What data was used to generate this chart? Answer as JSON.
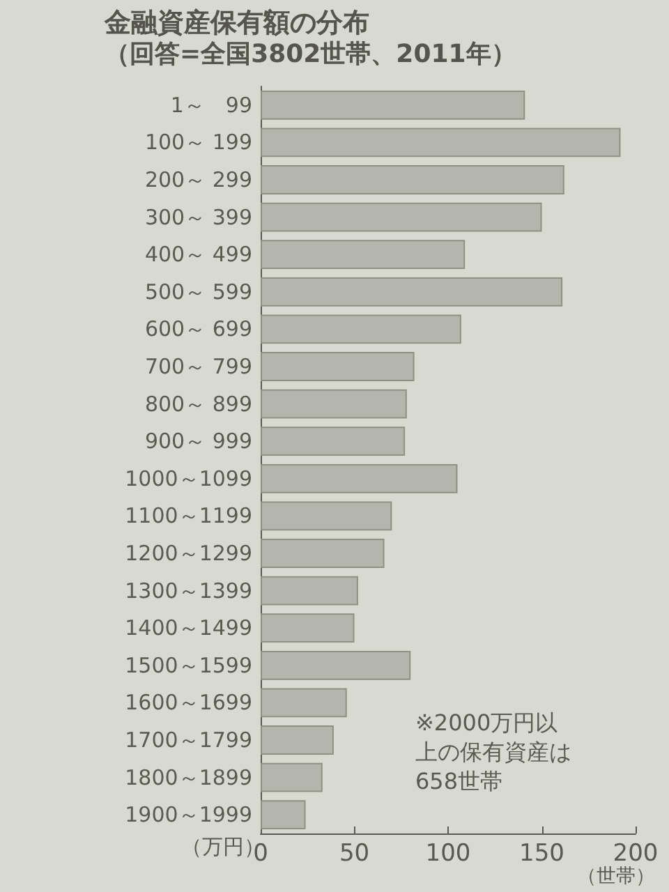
{
  "chart_data": {
    "type": "bar",
    "orientation": "horizontal",
    "title": "金融資産保有額の分布",
    "subtitle": "（回答=全国3802世帯、2011年）",
    "categories": [
      "1～　99",
      "100～ 199",
      "200～ 299",
      "300～ 399",
      "400～ 499",
      "500～ 599",
      "600～ 699",
      "700～ 799",
      "800～ 899",
      "900～ 999",
      "1000～1099",
      "1100～1199",
      "1200～1299",
      "1300～1399",
      "1400～1499",
      "1500～1599",
      "1600～1699",
      "1700～1799",
      "1800～1899",
      "1900～1999"
    ],
    "values": [
      141,
      192,
      162,
      150,
      109,
      161,
      107,
      82,
      78,
      77,
      105,
      70,
      66,
      52,
      50,
      80,
      46,
      39,
      33,
      24
    ],
    "color": "#b4b5ad",
    "xlim": [
      0,
      200
    ],
    "xticks": [
      0,
      50,
      100,
      150,
      200
    ],
    "xlabel": "（世帯）",
    "ylabel": "（万円）",
    "annotations": [
      "※2000万円以上の保有資産は658世帯"
    ],
    "grid": false
  }
}
